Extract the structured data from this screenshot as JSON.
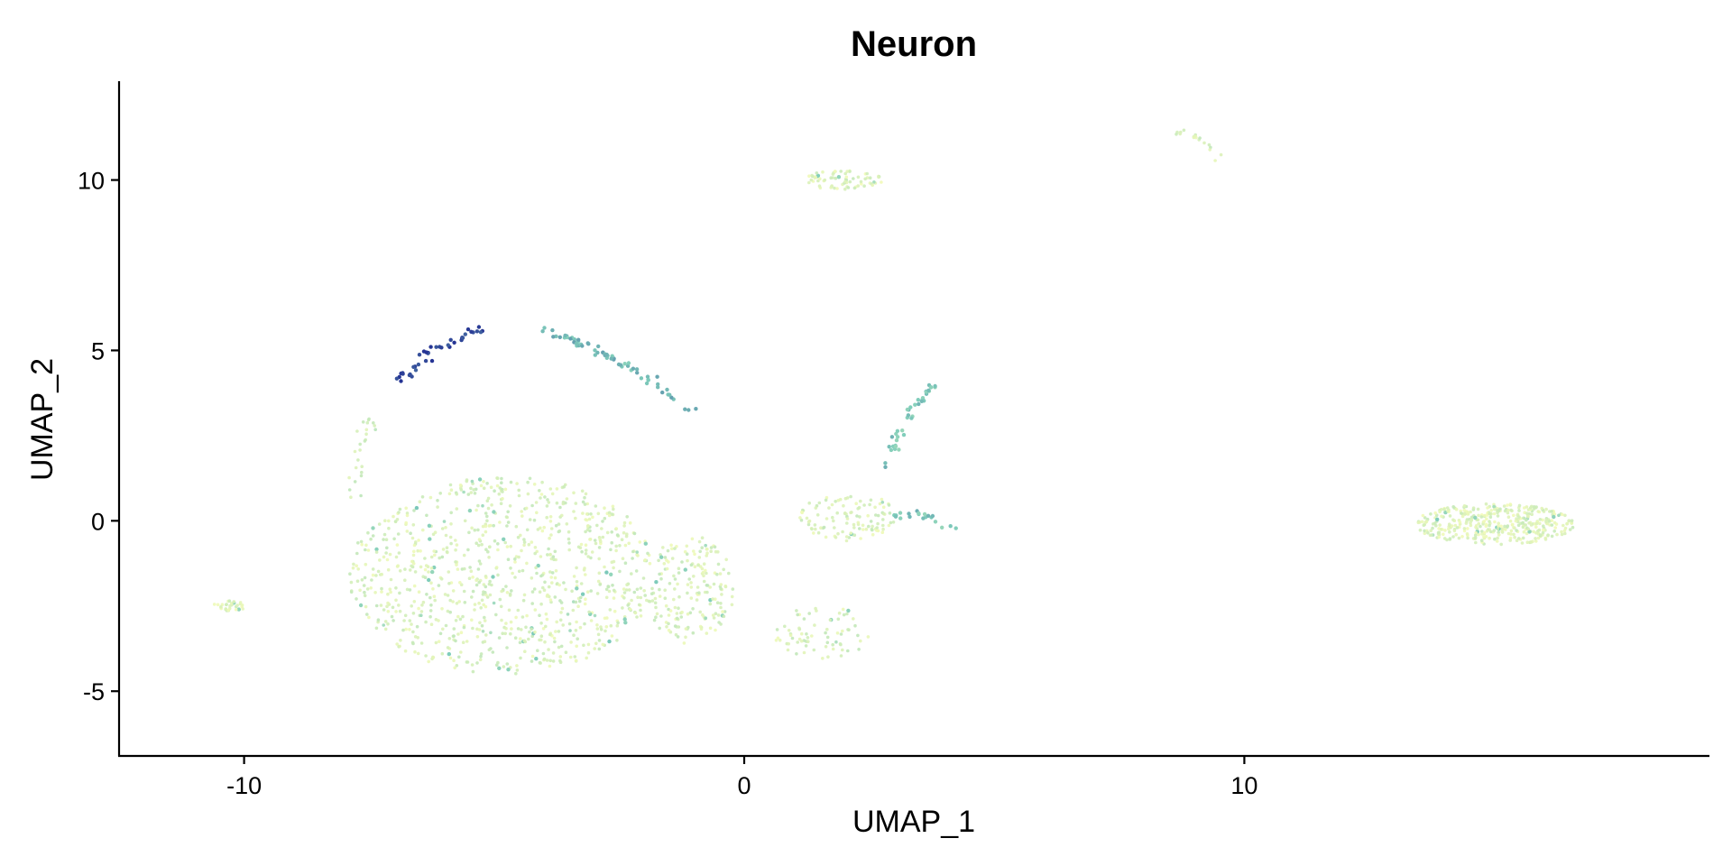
{
  "chart_data": {
    "type": "scatter",
    "title": "Neuron",
    "xlabel": "UMAP_1",
    "ylabel": "UMAP_2",
    "xlim": [
      -12.5,
      19.3
    ],
    "ylim": [
      -6.9,
      12.9
    ],
    "x_ticks": [
      -10,
      0,
      10
    ],
    "y_ticks": [
      -5,
      0,
      5,
      10
    ],
    "grid": false,
    "legend": "none",
    "colors": {
      "low": "#f3fbb8",
      "mid": "#7fcdbb",
      "high": "#253494"
    },
    "clusters": [
      {
        "shape": "blob",
        "center": [
          -4.8,
          -1.6
        ],
        "spread": [
          3.1,
          2.9
        ],
        "n": 900,
        "level": 0.12
      },
      {
        "shape": "blob",
        "center": [
          -1.1,
          -2.0
        ],
        "spread": [
          0.9,
          1.6
        ],
        "n": 180,
        "level": 0.12
      },
      {
        "shape": "blob",
        "center": [
          -10.3,
          -2.5
        ],
        "spread": [
          0.35,
          0.15
        ],
        "n": 30,
        "level": 0.1
      },
      {
        "shape": "blob",
        "center": [
          2.0,
          10.0
        ],
        "spread": [
          0.8,
          0.3
        ],
        "n": 70,
        "level": 0.1
      },
      {
        "shape": "blob",
        "center": [
          2.1,
          0.1
        ],
        "spread": [
          1.0,
          0.7
        ],
        "n": 110,
        "level": 0.12
      },
      {
        "shape": "blob",
        "center": [
          1.6,
          -3.3
        ],
        "spread": [
          1.0,
          0.8
        ],
        "n": 70,
        "level": 0.12
      },
      {
        "shape": "blob",
        "center": [
          15.0,
          -0.1
        ],
        "spread": [
          1.6,
          0.6
        ],
        "n": 380,
        "level": 0.1
      },
      {
        "shape": "arc",
        "x": [
          -6.9,
          -5.2
        ],
        "y": [
          4.1,
          5.6
        ],
        "n": 40,
        "level": 0.95
      },
      {
        "shape": "arc",
        "x": [
          -4.0,
          -1.0
        ],
        "y": [
          5.6,
          3.2
        ],
        "n": 70,
        "level": 0.55
      },
      {
        "shape": "arc",
        "x": [
          2.7,
          3.8
        ],
        "y": [
          1.5,
          4.0
        ],
        "n": 40,
        "level": 0.5
      },
      {
        "shape": "arc",
        "x": [
          3.0,
          4.2
        ],
        "y": [
          0.1,
          -0.3
        ],
        "n": 20,
        "level": 0.5
      },
      {
        "shape": "arc",
        "x": [
          8.7,
          9.5
        ],
        "y": [
          11.4,
          10.6
        ],
        "n": 18,
        "level": 0.12
      },
      {
        "shape": "arc",
        "x": [
          -7.5,
          -7.9
        ],
        "y": [
          3.0,
          0.5
        ],
        "n": 25,
        "level": 0.15
      }
    ]
  }
}
